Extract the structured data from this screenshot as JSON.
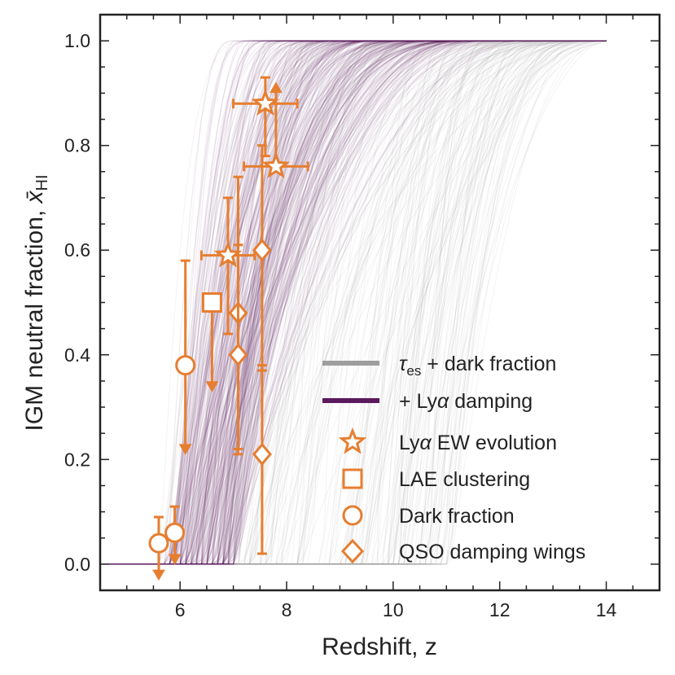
{
  "chart_data": {
    "type": "line",
    "xlabel": "Redshift, z",
    "ylabel_prefix": "IGM neutral fraction, ",
    "ylabel_symbol": "x̄",
    "ylabel_sub": "HI",
    "xlim": [
      4.5,
      15.0
    ],
    "ylim": [
      -0.05,
      1.05
    ],
    "xticks": [
      6,
      8,
      10,
      12,
      14
    ],
    "yticks": [
      0.0,
      0.2,
      0.4,
      0.6,
      0.8,
      1.0
    ],
    "xtick_labels": [
      "6",
      "8",
      "10",
      "12",
      "14"
    ],
    "ytick_labels": [
      "0.0",
      "0.2",
      "0.4",
      "0.6",
      "0.8",
      "1.0"
    ],
    "grid": false,
    "legend_position": "bottom-right",
    "colors": {
      "tau_lines": "#9e9e9e",
      "lya_lines": "#5b1a5c",
      "points": "#e67e30"
    },
    "series": [
      {
        "name": "τes + dark fraction",
        "legend_main": "τ",
        "legend_sub": "es",
        "legend_rest": " + dark fraction",
        "kind": "posterior_draws",
        "description_zrange": [
          5.8,
          14.0
        ]
      },
      {
        "name": "+ Lyα damping",
        "legend_main": "+ Ly",
        "legend_italic": "α",
        "legend_rest": " damping",
        "kind": "posterior_draws"
      }
    ],
    "point_groups": [
      {
        "name": "Lyα EW evolution",
        "legend_main": "Ly",
        "legend_italic": "α",
        "legend_rest": " EW evolution",
        "marker": "star",
        "points": [
          {
            "z": 6.9,
            "x": 0.59,
            "yerr_lo": 0.15,
            "yerr_hi": 0.11,
            "xerr_lo": 0.5,
            "xerr_hi": 0.5
          },
          {
            "z": 7.6,
            "x": 0.88,
            "yerr_lo": 0.1,
            "yerr_hi": 0.05,
            "xerr_lo": 0.6,
            "xerr_hi": 0.6
          },
          {
            "z": 7.8,
            "x": 0.76,
            "yerr_lo": 0.0,
            "yerr_hi": 0.0,
            "xerr_lo": 0.6,
            "xerr_hi": 0.6,
            "lower_limit": true,
            "limit_to": 0.92
          }
        ]
      },
      {
        "name": "LAE clustering",
        "marker": "square",
        "points": [
          {
            "z": 6.6,
            "x": 0.5,
            "upper_limit": true,
            "limit_to": 0.33
          }
        ]
      },
      {
        "name": "Dark fraction",
        "marker": "circle",
        "points": [
          {
            "z": 5.6,
            "x": 0.04,
            "yerr_lo": 0.0,
            "yerr_hi": 0.05,
            "upper_limit": true,
            "limit_to": -0.03
          },
          {
            "z": 5.9,
            "x": 0.06,
            "yerr_lo": 0.0,
            "yerr_hi": 0.05,
            "upper_limit": true,
            "limit_to": 0.0
          },
          {
            "z": 6.1,
            "x": 0.38,
            "yerr_lo": 0.0,
            "yerr_hi": 0.2,
            "upper_limit": true,
            "limit_to": 0.21
          }
        ]
      },
      {
        "name": "QSO damping wings",
        "marker": "diamond",
        "points": [
          {
            "z": 7.09,
            "x": 0.48,
            "yerr_lo": 0.26,
            "yerr_hi": 0.26
          },
          {
            "z": 7.09,
            "x": 0.4,
            "yerr_lo": 0.19,
            "yerr_hi": 0.21
          },
          {
            "z": 7.54,
            "x": 0.6,
            "yerr_lo": 0.23,
            "yerr_hi": 0.2
          },
          {
            "z": 7.54,
            "x": 0.21,
            "yerr_lo": 0.19,
            "yerr_hi": 0.17
          }
        ]
      }
    ]
  }
}
